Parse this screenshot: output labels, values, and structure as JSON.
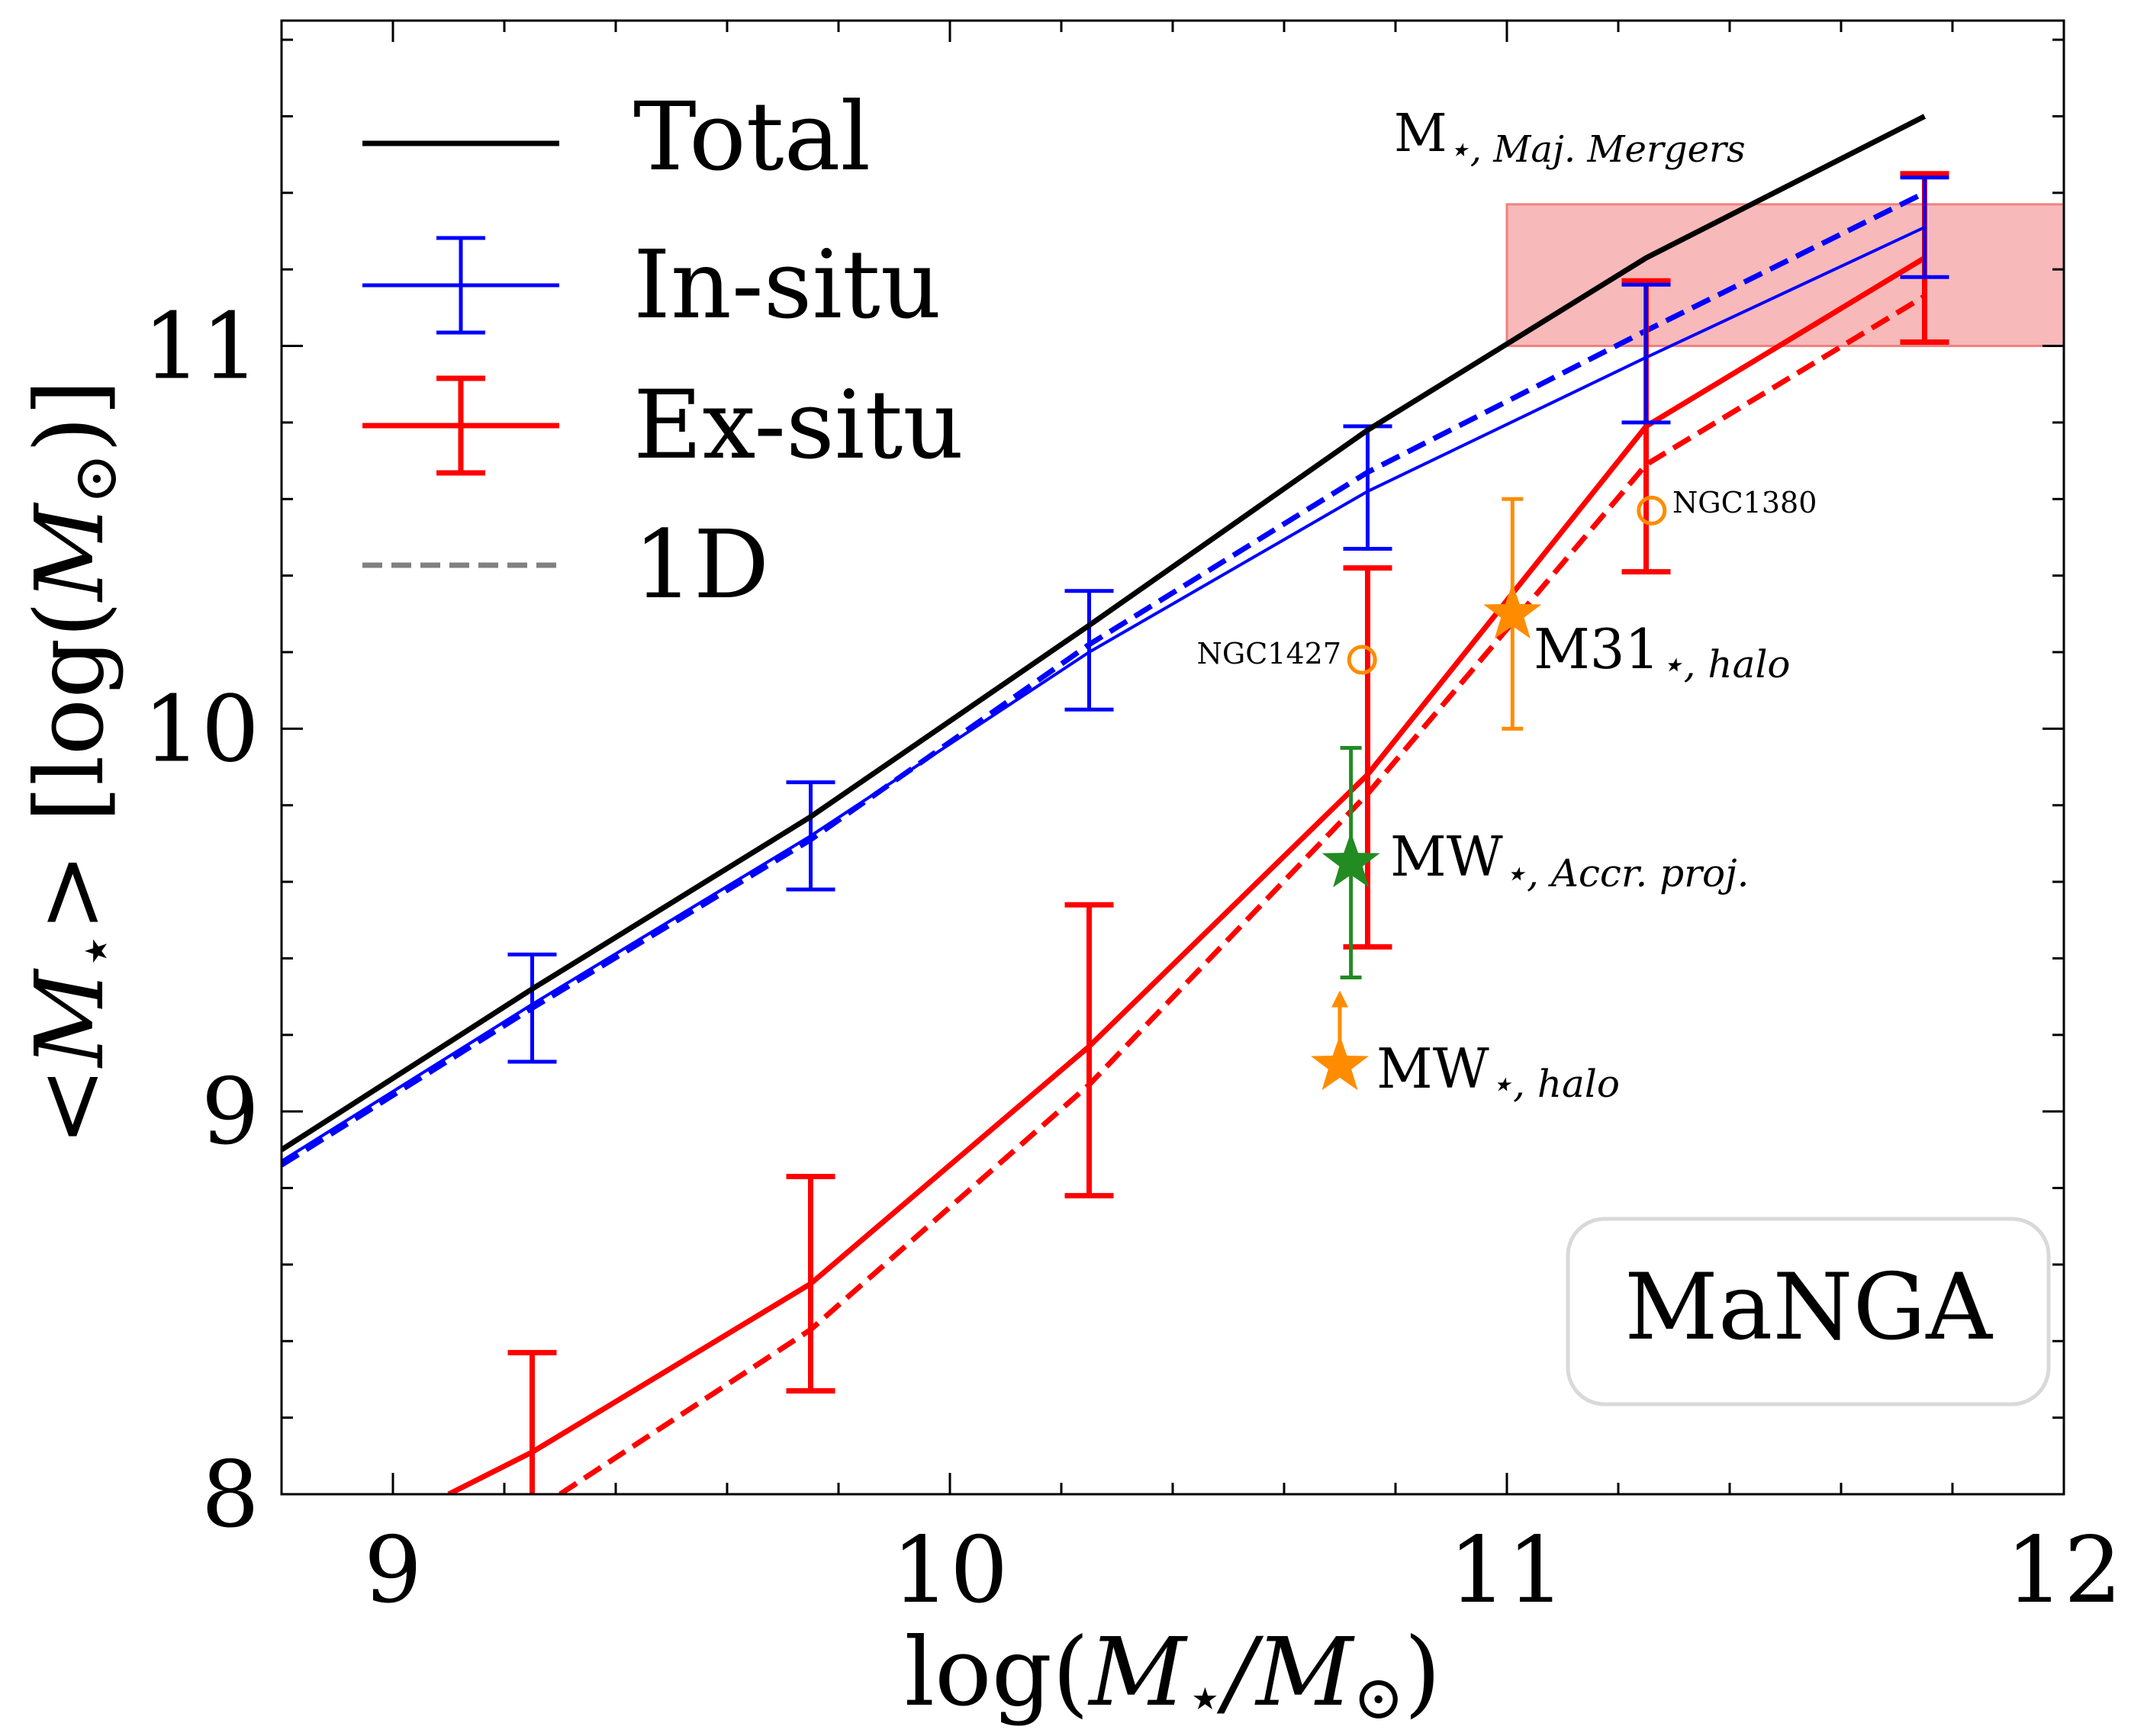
{
  "chart_data": {
    "type": "line",
    "xlabel": "log(M⋆/M⊙)",
    "ylabel": "<M⋆> [log(M⊙)]",
    "xlim": [
      8.8,
      12.0
    ],
    "ylim": [
      8.0,
      11.85
    ],
    "x_ticks": [
      9,
      10,
      11,
      12
    ],
    "y_ticks": [
      8,
      9,
      10,
      11
    ],
    "grid": false,
    "legend_position": "top-left",
    "legend": [
      "Total",
      "In-situ",
      "Ex-situ",
      "1D"
    ],
    "panel_label": "MaNGA",
    "colors": {
      "total": "#000000",
      "in_situ": "#0000ff",
      "ex_situ": "#ff0000",
      "one_d": "#808080",
      "orange": "#ff8c00",
      "green": "#228b22",
      "band": "#f08080"
    },
    "series": [
      {
        "name": "Total",
        "style": "solid",
        "color": "#000000",
        "x": [
          8.8,
          9.25,
          9.75,
          10.25,
          10.75,
          11.25,
          11.75
        ],
        "y": [
          8.9,
          9.32,
          9.77,
          10.27,
          10.78,
          11.23,
          11.6
        ]
      },
      {
        "name": "In-situ",
        "style": "solid",
        "color": "#0000ff",
        "x": [
          8.8,
          9.25,
          9.75,
          10.25,
          10.75,
          11.25,
          11.75
        ],
        "y": [
          8.87,
          9.28,
          9.72,
          10.2,
          10.62,
          10.97,
          11.31
        ],
        "err_low": [
          null,
          9.13,
          9.58,
          10.05,
          10.47,
          10.8,
          11.18
        ],
        "err_high": [
          null,
          9.41,
          9.86,
          10.36,
          10.79,
          11.16,
          11.44
        ]
      },
      {
        "name": "Ex-situ",
        "style": "solid",
        "color": "#ff0000",
        "x": [
          9.1,
          9.25,
          9.75,
          10.25,
          10.75,
          11.25,
          11.75
        ],
        "y": [
          8.0,
          8.11,
          8.55,
          9.17,
          9.88,
          10.79,
          11.23
        ],
        "err_low": [
          null,
          7.8,
          8.27,
          8.78,
          9.43,
          10.41,
          11.01
        ],
        "err_high": [
          null,
          8.37,
          8.83,
          9.54,
          10.42,
          11.17,
          11.45
        ]
      },
      {
        "name": "In-situ 1D",
        "style": "dashed",
        "color": "#0000ff",
        "x": [
          8.8,
          9.25,
          9.75,
          10.25,
          10.75,
          11.25,
          11.75
        ],
        "y": [
          8.86,
          9.27,
          9.71,
          10.22,
          10.67,
          11.04,
          11.4
        ]
      },
      {
        "name": "Ex-situ 1D",
        "style": "dashed",
        "color": "#ff0000",
        "x": [
          9.3,
          9.75,
          10.25,
          10.75,
          11.25,
          11.75
        ],
        "y": [
          8.0,
          8.43,
          9.07,
          9.83,
          10.69,
          11.13
        ]
      }
    ],
    "band": {
      "x": [
        11.0,
        12.0
      ],
      "y": [
        11.0,
        11.37
      ],
      "label": "M⋆, Maj. Mergers"
    },
    "points": [
      {
        "label": "NGC1427",
        "x": 10.74,
        "y": 10.18,
        "marker": "open-circle",
        "color": "#ff8c00"
      },
      {
        "label": "NGC1380",
        "x": 11.26,
        "y": 10.57,
        "marker": "open-circle",
        "color": "#ff8c00"
      },
      {
        "label": "M31⋆, halo",
        "x": 11.01,
        "y": 10.3,
        "err_low": 10.0,
        "err_high": 10.6,
        "marker": "star",
        "color": "#ff8c00"
      },
      {
        "label": "MW⋆, Accr. proj.",
        "x": 10.72,
        "y": 9.65,
        "err_low": 9.35,
        "err_high": 9.95,
        "marker": "star",
        "color": "#228b22"
      },
      {
        "label": "MW⋆, halo",
        "x": 10.7,
        "y": 9.12,
        "lower_limit_arrow_to": 9.3,
        "marker": "star",
        "color": "#ff8c00"
      }
    ]
  },
  "text": {
    "band_label_main": "M",
    "band_label_sub": "⋆, Maj. Mergers",
    "legend_total": "Total",
    "legend_insitu": "In-situ",
    "legend_exsitu": "Ex-situ",
    "legend_1d": "1D",
    "panel_label": "MaNGA",
    "ngc1427": "NGC1427",
    "ngc1380": "NGC1380",
    "m31_main": "M31",
    "m31_sub": "⋆, halo",
    "mw_accr_main": "MW",
    "mw_accr_sub": "⋆, Accr. proj.",
    "mw_halo_main": "MW",
    "mw_halo_sub": "⋆, halo",
    "xlabel_a": "log(",
    "xlabel_m1": "M",
    "xlabel_star": "⋆",
    "xlabel_slash": "/",
    "xlabel_m2": "M",
    "xlabel_sun": "⊙",
    "xlabel_b": ")",
    "ylabel_a": "<",
    "ylabel_m1": "M",
    "ylabel_star": "⋆",
    "ylabel_b": "> [log(",
    "ylabel_m2": "M",
    "ylabel_sun": "⊙",
    "ylabel_c": ")]"
  }
}
